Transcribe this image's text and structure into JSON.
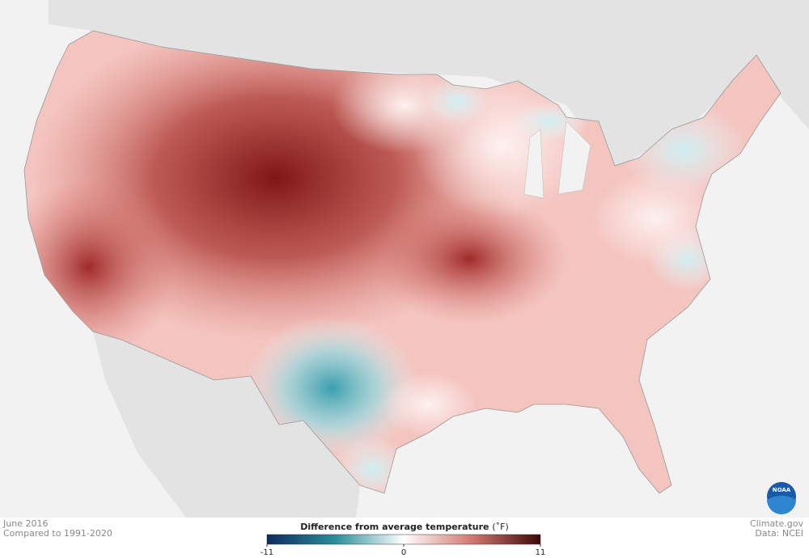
{
  "map": {
    "date": "June 2016",
    "baseline": "Compared to 1991-2020",
    "credit": "Climate.gov",
    "source": "Data: NCEI",
    "logo": "NOAA"
  },
  "legend": {
    "title": "Difference from average temperature",
    "unit": "(˚F)",
    "range": [
      -11,
      11
    ],
    "ticks": [
      -11,
      0,
      11
    ]
  }
}
